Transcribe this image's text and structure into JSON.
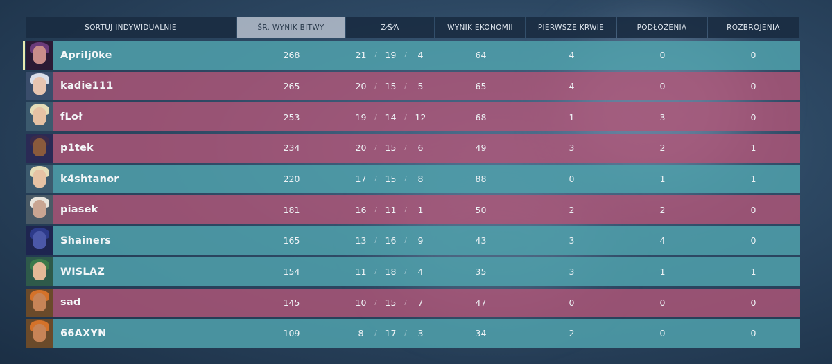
{
  "header": {
    "sort_label": "SORTUJ INDYWIDUALNIE",
    "columns": [
      {
        "label": "ŚR. WYNIK BITWY"
      },
      {
        "label": "Z⁄Ś⁄A"
      },
      {
        "label": "WYNIK EKONOMII"
      },
      {
        "label": "PIERWSZE KRWIE"
      },
      {
        "label": "PODŁOŻENIA"
      },
      {
        "label": "ROZBROJENIA"
      }
    ]
  },
  "players": [
    {
      "name": "Aprilj0ke",
      "score": "268",
      "k": "21",
      "d": "19",
      "a": "4",
      "eco": "64",
      "fb": "4",
      "plants": "0",
      "defuses": "0",
      "team": "teal",
      "agent_icon": "reyna-icon"
    },
    {
      "name": "kadie111",
      "score": "265",
      "k": "20",
      "d": "15",
      "a": "5",
      "eco": "65",
      "fb": "4",
      "plants": "0",
      "defuses": "0",
      "team": "pink",
      "agent_icon": "jett-icon"
    },
    {
      "name": "fLoł",
      "score": "253",
      "k": "19",
      "d": "14",
      "a": "12",
      "eco": "68",
      "fb": "1",
      "plants": "3",
      "defuses": "0",
      "team": "pink",
      "agent_icon": "sova-icon"
    },
    {
      "name": "p1tek",
      "score": "234",
      "k": "20",
      "d": "15",
      "a": "6",
      "eco": "49",
      "fb": "3",
      "plants": "2",
      "defuses": "1",
      "team": "pink",
      "agent_icon": "neon-icon"
    },
    {
      "name": "k4shtanor",
      "score": "220",
      "k": "17",
      "d": "15",
      "a": "8",
      "eco": "88",
      "fb": "0",
      "plants": "1",
      "defuses": "1",
      "team": "teal",
      "agent_icon": "sova-icon"
    },
    {
      "name": "piasek",
      "score": "181",
      "k": "16",
      "d": "11",
      "a": "1",
      "eco": "50",
      "fb": "2",
      "plants": "2",
      "defuses": "0",
      "team": "pink",
      "agent_icon": "cypher-icon"
    },
    {
      "name": "Shainers",
      "score": "165",
      "k": "13",
      "d": "16",
      "a": "9",
      "eco": "43",
      "fb": "3",
      "plants": "4",
      "defuses": "0",
      "team": "teal",
      "agent_icon": "omen-icon"
    },
    {
      "name": "WISLAZ",
      "score": "154",
      "k": "11",
      "d": "18",
      "a": "4",
      "eco": "35",
      "fb": "3",
      "plants": "1",
      "defuses": "1",
      "team": "teal",
      "agent_icon": "killjoy-icon"
    },
    {
      "name": "sad",
      "score": "145",
      "k": "10",
      "d": "15",
      "a": "7",
      "eco": "47",
      "fb": "0",
      "plants": "0",
      "defuses": "0",
      "team": "pink",
      "agent_icon": "raze-icon"
    },
    {
      "name": "66AXYN",
      "score": "109",
      "k": "8",
      "d": "17",
      "a": "3",
      "eco": "34",
      "fb": "2",
      "plants": "0",
      "defuses": "0",
      "team": "teal",
      "agent_icon": "raze-icon"
    }
  ],
  "colors": {
    "teal_row": "#4e9eaa",
    "pink_row": "#b05678",
    "header_bg": "#1a2c42",
    "active_header": "#d0d6e0"
  }
}
